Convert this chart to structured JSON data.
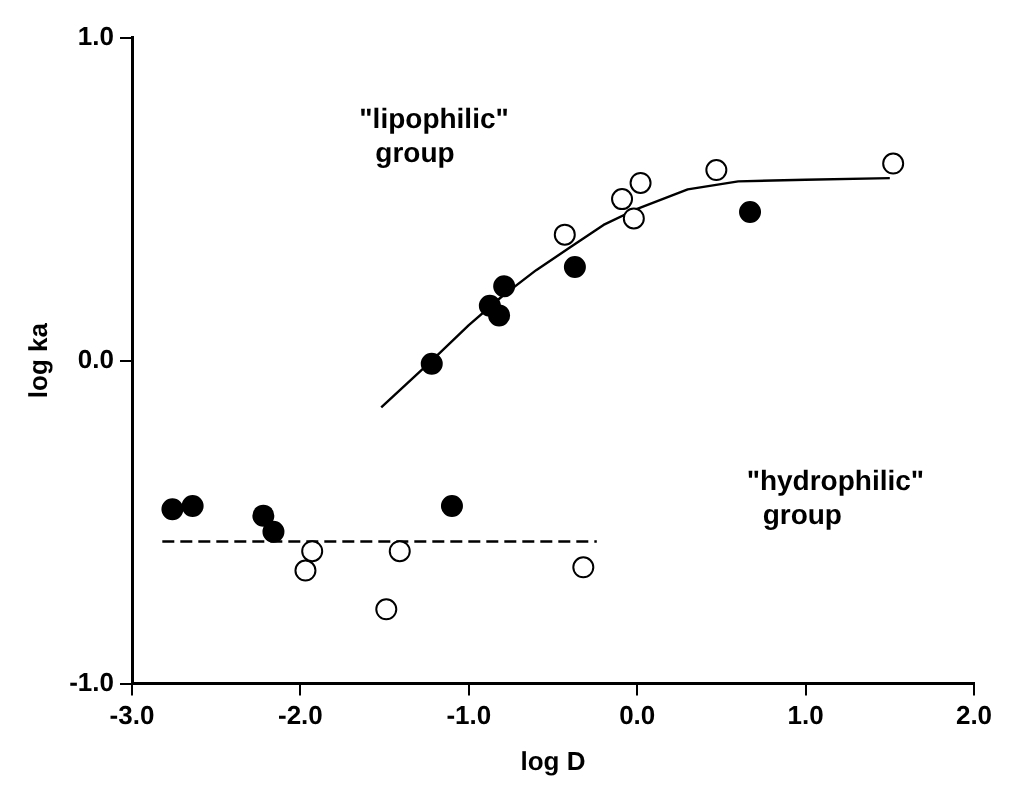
{
  "chart_data": {
    "type": "scatter",
    "xlabel": "log D",
    "ylabel": "log ka",
    "xlim": [
      -3,
      2
    ],
    "xticks": [
      {
        "value": -3,
        "label": "-3.0"
      },
      {
        "value": -2,
        "label": "-2.0"
      },
      {
        "value": -1,
        "label": "-1.0"
      },
      {
        "value": 0,
        "label": "0.0"
      },
      {
        "value": 1,
        "label": "1.0"
      },
      {
        "value": 2,
        "label": "2.0"
      }
    ],
    "ylim": [
      -1,
      1
    ],
    "yticks": [
      {
        "value": -1,
        "label": "-1.0"
      },
      {
        "value": 0,
        "label": "0.0"
      },
      {
        "value": 1,
        "label": "1.0"
      }
    ],
    "grid": false,
    "legend": false,
    "marker": "circle",
    "annotations": [
      "\"lipophilic\"\ngroup",
      "\"hydrophilic\"\ngroup"
    ],
    "series": [
      {
        "type": "scatter",
        "color": "#000000",
        "x": [
          -2.76,
          -2.64,
          -2.22,
          -2.16,
          -1.1,
          -1.22,
          -0.79,
          -0.875,
          -0.82,
          -0.37,
          0.67
        ],
        "values": [
          -0.46,
          -0.45,
          -0.48,
          -0.53,
          -0.45,
          -0.01,
          0.23,
          0.17,
          0.14,
          0.29,
          0.46
        ]
      },
      {
        "type": "scatter",
        "color": "#ffffff",
        "x": [
          -1.93,
          -1.97,
          -1.41,
          -1.49,
          -0.32,
          -0.43,
          -0.09,
          0.02,
          -0.02,
          0.47,
          1.52
        ],
        "values": [
          -0.59,
          -0.65,
          -0.59,
          -0.77,
          -0.64,
          0.39,
          0.5,
          0.55,
          0.44,
          0.59,
          0.61
        ]
      },
      {
        "type": "line",
        "color": "#000000",
        "marker": "none",
        "line_style": "solid",
        "x": [
          -1.52,
          -1.22,
          -1.0,
          -0.8,
          -0.6,
          -0.4,
          -0.2,
          0.0,
          0.3,
          0.6,
          1.0,
          1.5
        ],
        "values": [
          -0.145,
          0.0,
          0.11,
          0.2,
          0.28,
          0.35,
          0.42,
          0.47,
          0.53,
          0.555,
          0.56,
          0.565
        ]
      },
      {
        "type": "line",
        "color": "#000000",
        "marker": "none",
        "line_style": "dashed",
        "x": [
          -2.82,
          -0.24
        ],
        "values": [
          -0.56,
          -0.56
        ]
      }
    ]
  }
}
